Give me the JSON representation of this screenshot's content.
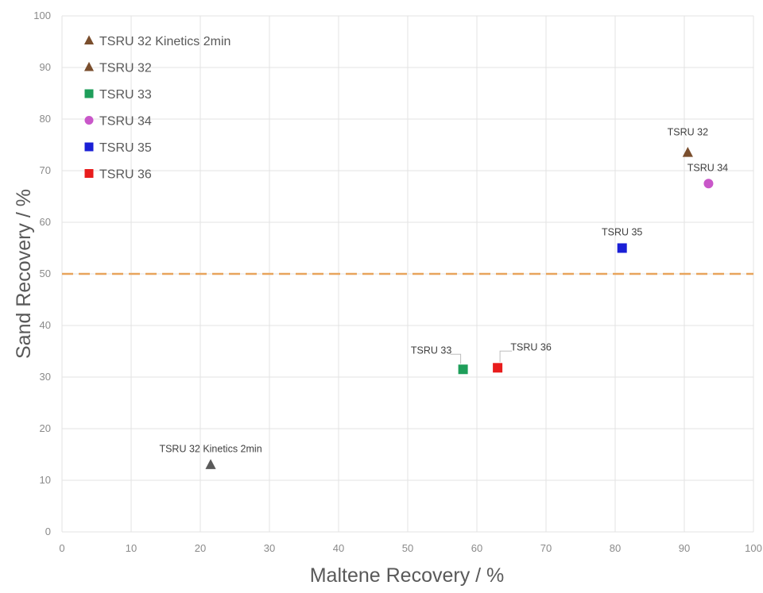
{
  "chart_data": {
    "type": "scatter",
    "title": "",
    "xlabel": "Maltene Recovery / %",
    "ylabel": "Sand Recovery / %",
    "xlim": [
      0,
      100
    ],
    "ylim": [
      0,
      100
    ],
    "x_ticks": [
      "0",
      "10",
      "20",
      "30",
      "40",
      "50",
      "60",
      "70",
      "80",
      "90",
      "100"
    ],
    "y_ticks": [
      "0",
      "10",
      "20",
      "30",
      "40",
      "50",
      "60",
      "70",
      "80",
      "90",
      "100"
    ],
    "grid": true,
    "legend_position": "top-left",
    "reference_line": {
      "orientation": "horizontal",
      "y": 50,
      "style": "dashed",
      "color": "#e8a45c"
    },
    "series": [
      {
        "name": "TSRU 32 Kinetics 2min",
        "marker": "triangle",
        "color": "#5a5a5a",
        "legend_color": "#7a4e2d",
        "points": [
          {
            "x": 21.5,
            "y": 13,
            "label": "TSRU 32 Kinetics 2min"
          }
        ]
      },
      {
        "name": "TSRU 32",
        "marker": "triangle",
        "color": "#7a4e2d",
        "points": [
          {
            "x": 90.5,
            "y": 73.5,
            "label": "TSRU 32"
          }
        ]
      },
      {
        "name": "TSRU 33",
        "marker": "square",
        "color": "#1e9e5a",
        "points": [
          {
            "x": 58,
            "y": 31.5,
            "label": "TSRU 33"
          }
        ]
      },
      {
        "name": "TSRU 34",
        "marker": "circle",
        "color": "#c957c9",
        "points": [
          {
            "x": 93.5,
            "y": 67.5,
            "label": "TSRU 34"
          }
        ]
      },
      {
        "name": "TSRU 35",
        "marker": "square",
        "color": "#1a1fd6",
        "points": [
          {
            "x": 81,
            "y": 55,
            "label": "TSRU 35"
          }
        ]
      },
      {
        "name": "TSRU 36",
        "marker": "square",
        "color": "#e81c1c",
        "points": [
          {
            "x": 63,
            "y": 31.8,
            "label": "TSRU 36"
          }
        ]
      }
    ]
  }
}
